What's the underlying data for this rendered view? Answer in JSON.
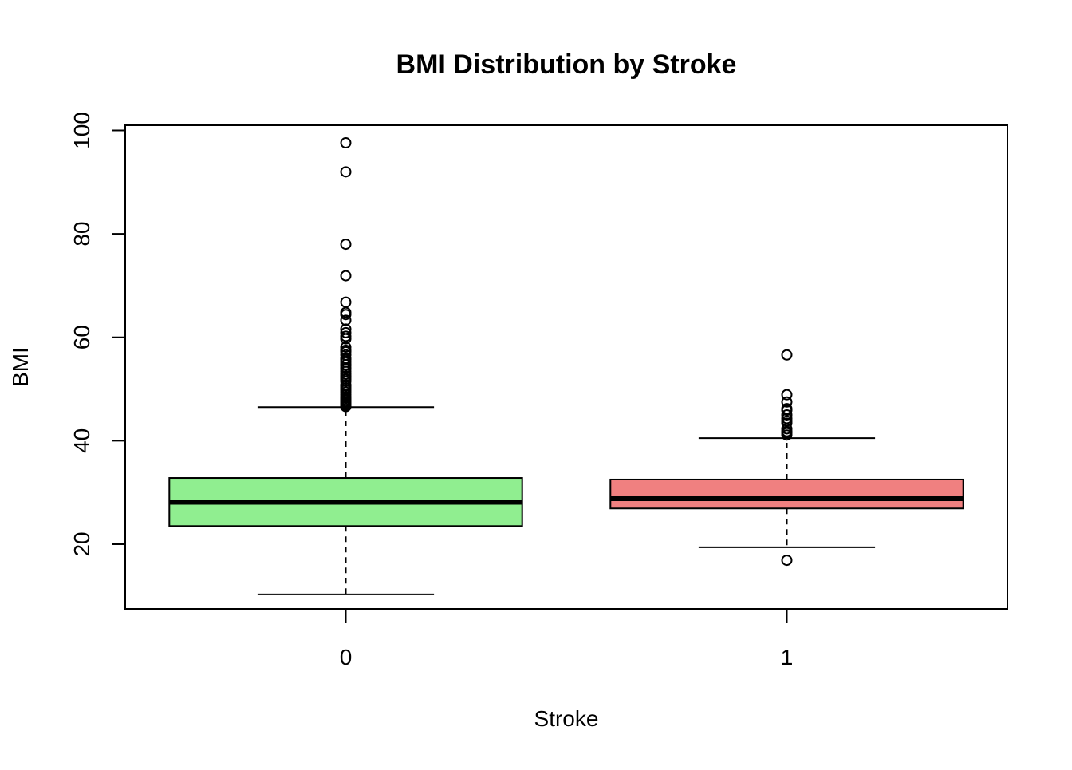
{
  "chart_data": {
    "type": "boxplot",
    "title": "BMI Distribution by Stroke",
    "xlabel": "Stroke",
    "ylabel": "BMI",
    "ylim": [
      7.5,
      101
    ],
    "yticks": [
      20,
      40,
      60,
      80,
      100
    ],
    "grid": false,
    "legend": "none",
    "categories": [
      "0",
      "1"
    ],
    "groups": [
      {
        "category": "0",
        "color": "#90ee90",
        "whisker_low": 10.3,
        "q1": 23.5,
        "median": 28.1,
        "q3": 32.8,
        "whisker_high": 46.5,
        "outliers": [
          97.6,
          92.0,
          78.0,
          71.9,
          66.8,
          64.8,
          64.4,
          63.3,
          61.6,
          60.9,
          60.2,
          59.7,
          58.1,
          57.5,
          57.2,
          56.6,
          55.9,
          55.7,
          55.2,
          54.7,
          54.6,
          54.1,
          53.9,
          53.4,
          52.9,
          52.5,
          52.3,
          51.9,
          51.5,
          50.8,
          50.6,
          50.2,
          49.8,
          49.4,
          48.9,
          48.5,
          48.2,
          47.9,
          47.6,
          47.5,
          47.3,
          47.1,
          46.9,
          46.6
        ]
      },
      {
        "category": "1",
        "color": "#f08080",
        "whisker_low": 19.4,
        "q1": 26.9,
        "median": 28.8,
        "q3": 32.5,
        "whisker_high": 40.5,
        "outliers": [
          56.6,
          48.9,
          47.5,
          46.2,
          45.9,
          45.0,
          44.3,
          43.8,
          43.4,
          42.3,
          41.8,
          41.5,
          41.1,
          16.9
        ]
      }
    ]
  }
}
